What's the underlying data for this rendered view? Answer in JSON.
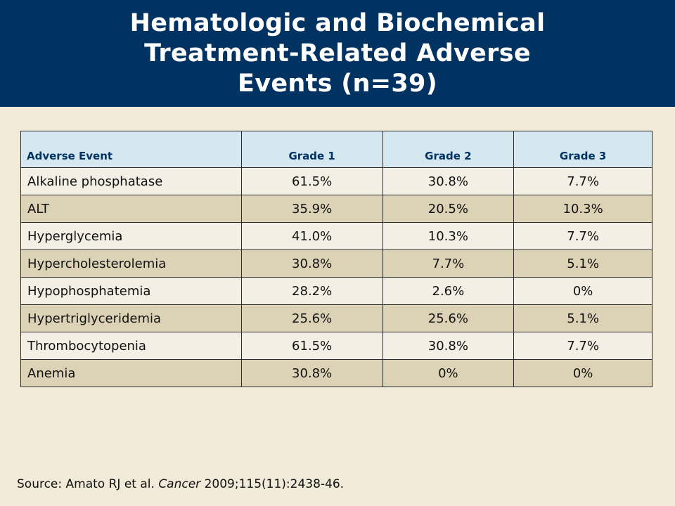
{
  "title": {
    "lines": [
      "Hematologic and Biochemical",
      "Treatment-Related Adverse",
      "Events (n=39)"
    ]
  },
  "table": {
    "headers": [
      "Adverse Event",
      "Grade 1",
      "Grade 2",
      "Grade 3"
    ],
    "rows": [
      [
        "Alkaline phosphatase",
        "61.5%",
        "30.8%",
        "7.7%"
      ],
      [
        "ALT",
        "35.9%",
        "20.5%",
        "10.3%"
      ],
      [
        "Hyperglycemia",
        "41.0%",
        "10.3%",
        "7.7%"
      ],
      [
        "Hypercholesterolemia",
        "30.8%",
        "7.7%",
        "5.1%"
      ],
      [
        "Hypophosphatemia",
        "28.2%",
        "2.6%",
        "0%"
      ],
      [
        "Hypertriglyceridemia",
        "25.6%",
        "25.6%",
        "5.1%"
      ],
      [
        "Thrombocytopenia",
        "61.5%",
        "30.8%",
        "7.7%"
      ],
      [
        "Anemia",
        "30.8%",
        "0%",
        "0%"
      ]
    ]
  },
  "source": {
    "prefix": "Source: Amato RJ et al. ",
    "journal": "Cancer",
    "suffix": " 2009;115(11):2438-46."
  },
  "colors": {
    "title_bar": "#003262",
    "background": "#f1ead8",
    "header_row": "#d5e8f2",
    "row_light": "#f4efe4",
    "row_dark": "#dcd3b6"
  }
}
